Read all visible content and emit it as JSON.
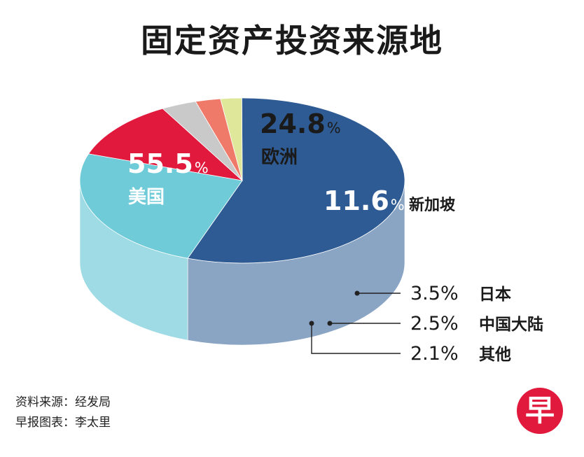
{
  "chart_data": {
    "type": "pie",
    "title": "固定资产投资来源地",
    "slices": [
      {
        "label": "美国",
        "value": 55.5,
        "value_label": "55.5",
        "color": "#2e5b93",
        "side_color": "#8aa4c4"
      },
      {
        "label": "欧洲",
        "value": 24.8,
        "value_label": "24.8",
        "color": "#6fcbd8",
        "side_color": "#9fdbe4"
      },
      {
        "label": "新加坡",
        "value": 11.6,
        "value_label": "11.6",
        "color": "#e1193d",
        "side_color": "#f07b8e"
      },
      {
        "label": "日本",
        "value": 3.5,
        "value_label": "3.5",
        "color": "#c9c9c9",
        "side_color": "#e2e2e2"
      },
      {
        "label": "中国大陆",
        "value": 2.5,
        "value_label": "2.5",
        "color": "#f07a6a",
        "side_color": "#f6b4aa"
      },
      {
        "label": "其他",
        "value": 2.1,
        "value_label": "2.1",
        "color": "#dfe89a",
        "side_color": "#eef3c6"
      }
    ],
    "unit": "%",
    "legend": "callouts"
  },
  "footer": {
    "source": "资料来源：经发局",
    "credit": "早报图表：李太里"
  },
  "logo": {
    "text": "早",
    "color": "#e1193d"
  }
}
